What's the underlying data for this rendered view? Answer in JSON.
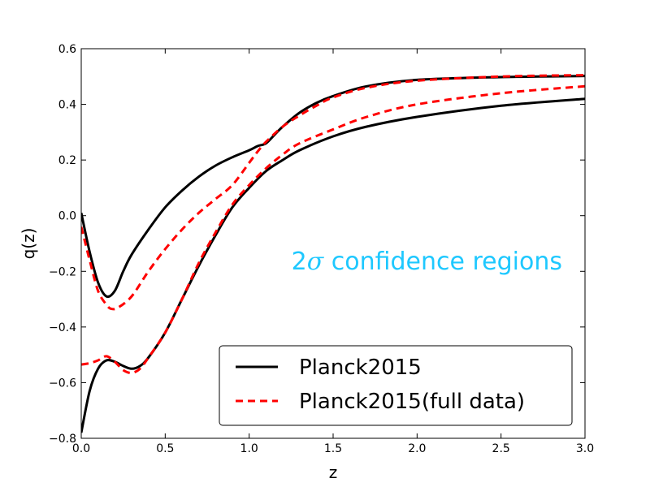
{
  "chart_data": {
    "type": "line",
    "title": "",
    "xlabel": "z",
    "ylabel": "q(z)",
    "xlim": [
      0.0,
      3.0
    ],
    "ylim": [
      -0.8,
      0.6
    ],
    "grid": false,
    "x_ticks": [
      0.0,
      0.5,
      1.0,
      1.5,
      2.0,
      2.5,
      3.0
    ],
    "x_tick_labels": [
      "0.0",
      "0.5",
      "1.0",
      "1.5",
      "2.0",
      "2.5",
      "3.0"
    ],
    "y_ticks": [
      -0.8,
      -0.6,
      -0.4,
      -0.2,
      0.0,
      0.2,
      0.4,
      0.6
    ],
    "y_tick_labels": [
      "−0.8",
      "−0.6",
      "−0.4",
      "−0.2",
      "0.0",
      "0.2",
      "0.4",
      "0.6"
    ],
    "annotation": {
      "prefix": "2",
      "symbol": "σ",
      "suffix": " confidence regions",
      "color": "#1EC8FF"
    },
    "legend": {
      "position": "lower-right",
      "entries": [
        {
          "label": "Planck2015",
          "color": "#000000",
          "style": "solid"
        },
        {
          "label": "Planck2015(full data)",
          "color": "#FF0000",
          "style": "dashed"
        }
      ]
    },
    "series": [
      {
        "name": "Planck2015 upper",
        "legend": "Planck2015",
        "color": "#000000",
        "style": "solid",
        "points": [
          [
            0.0,
            0.01
          ],
          [
            0.05,
            -0.13
          ],
          [
            0.1,
            -0.24
          ],
          [
            0.15,
            -0.29
          ],
          [
            0.2,
            -0.27
          ],
          [
            0.25,
            -0.2
          ],
          [
            0.3,
            -0.14
          ],
          [
            0.4,
            -0.05
          ],
          [
            0.5,
            0.03
          ],
          [
            0.6,
            0.09
          ],
          [
            0.7,
            0.14
          ],
          [
            0.8,
            0.18
          ],
          [
            0.9,
            0.21
          ],
          [
            1.0,
            0.235
          ],
          [
            1.05,
            0.25
          ],
          [
            1.1,
            0.26
          ],
          [
            1.15,
            0.29
          ],
          [
            1.2,
            0.32
          ],
          [
            1.3,
            0.37
          ],
          [
            1.4,
            0.405
          ],
          [
            1.5,
            0.43
          ],
          [
            1.7,
            0.465
          ],
          [
            2.0,
            0.488
          ],
          [
            2.5,
            0.498
          ],
          [
            3.0,
            0.502
          ]
        ]
      },
      {
        "name": "Planck2015 lower",
        "legend": "Planck2015",
        "color": "#000000",
        "style": "solid",
        "points": [
          [
            0.0,
            -0.78
          ],
          [
            0.05,
            -0.63
          ],
          [
            0.1,
            -0.55
          ],
          [
            0.15,
            -0.52
          ],
          [
            0.2,
            -0.525
          ],
          [
            0.25,
            -0.54
          ],
          [
            0.3,
            -0.55
          ],
          [
            0.35,
            -0.54
          ],
          [
            0.4,
            -0.51
          ],
          [
            0.5,
            -0.42
          ],
          [
            0.6,
            -0.3
          ],
          [
            0.7,
            -0.18
          ],
          [
            0.8,
            -0.07
          ],
          [
            0.9,
            0.03
          ],
          [
            1.0,
            0.1
          ],
          [
            1.1,
            0.16
          ],
          [
            1.2,
            0.2
          ],
          [
            1.3,
            0.235
          ],
          [
            1.5,
            0.285
          ],
          [
            1.7,
            0.32
          ],
          [
            2.0,
            0.355
          ],
          [
            2.5,
            0.395
          ],
          [
            3.0,
            0.42
          ]
        ]
      },
      {
        "name": "Planck2015(full data) upper",
        "legend": "Planck2015(full data)",
        "color": "#FF0000",
        "style": "dashed",
        "points": [
          [
            0.0,
            -0.04
          ],
          [
            0.05,
            -0.16
          ],
          [
            0.1,
            -0.27
          ],
          [
            0.15,
            -0.32
          ],
          [
            0.18,
            -0.335
          ],
          [
            0.22,
            -0.33
          ],
          [
            0.3,
            -0.29
          ],
          [
            0.4,
            -0.2
          ],
          [
            0.5,
            -0.12
          ],
          [
            0.6,
            -0.05
          ],
          [
            0.7,
            0.01
          ],
          [
            0.8,
            0.06
          ],
          [
            0.9,
            0.11
          ],
          [
            1.0,
            0.19
          ],
          [
            1.05,
            0.23
          ],
          [
            1.1,
            0.265
          ],
          [
            1.2,
            0.32
          ],
          [
            1.3,
            0.36
          ],
          [
            1.4,
            0.395
          ],
          [
            1.5,
            0.425
          ],
          [
            1.7,
            0.46
          ],
          [
            2.0,
            0.485
          ],
          [
            2.5,
            0.5
          ],
          [
            3.0,
            0.505
          ]
        ]
      },
      {
        "name": "Planck2015(full data) lower",
        "legend": "Planck2015(full data)",
        "color": "#FF0000",
        "style": "dashed",
        "points": [
          [
            0.0,
            -0.535
          ],
          [
            0.05,
            -0.53
          ],
          [
            0.1,
            -0.52
          ],
          [
            0.15,
            -0.505
          ],
          [
            0.2,
            -0.525
          ],
          [
            0.25,
            -0.555
          ],
          [
            0.3,
            -0.565
          ],
          [
            0.35,
            -0.55
          ],
          [
            0.4,
            -0.51
          ],
          [
            0.5,
            -0.42
          ],
          [
            0.6,
            -0.3
          ],
          [
            0.7,
            -0.17
          ],
          [
            0.8,
            -0.06
          ],
          [
            0.9,
            0.04
          ],
          [
            1.0,
            0.11
          ],
          [
            1.1,
            0.17
          ],
          [
            1.2,
            0.22
          ],
          [
            1.3,
            0.26
          ],
          [
            1.5,
            0.31
          ],
          [
            1.7,
            0.355
          ],
          [
            2.0,
            0.4
          ],
          [
            2.5,
            0.44
          ],
          [
            3.0,
            0.465
          ]
        ]
      }
    ]
  }
}
